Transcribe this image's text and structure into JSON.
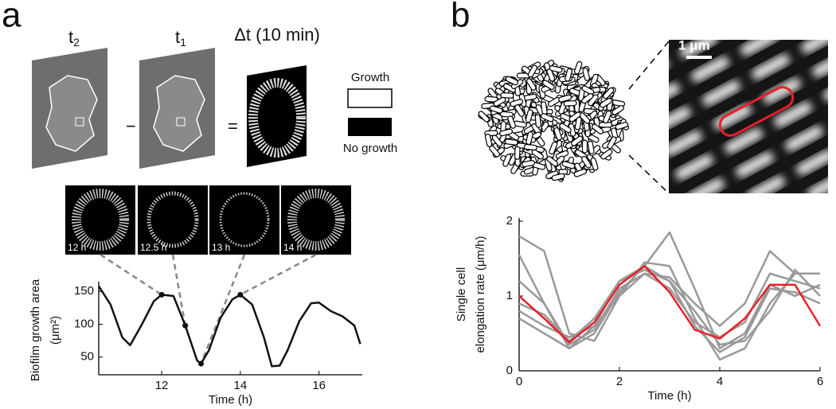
{
  "panels": {
    "a": "a",
    "b": "b"
  },
  "panel_a": {
    "t2": {
      "base": "t",
      "sub": "2"
    },
    "minus": "−",
    "t1": {
      "base": "t",
      "sub": "1"
    },
    "equals": "=",
    "delta": "Δt (10 min)",
    "legend": {
      "growth": "Growth",
      "no_growth": "No growth"
    },
    "insets": [
      "12 h",
      "12.5 h",
      "13 h",
      "14 h"
    ]
  },
  "panel_b": {
    "scale_bar": "1 μm"
  },
  "chart_data": [
    {
      "type": "line",
      "x": [
        10.4,
        10.7,
        11.0,
        11.2,
        11.5,
        11.8,
        12.0,
        12.3,
        12.6,
        12.9,
        13.0,
        13.2,
        13.5,
        13.8,
        14.0,
        14.3,
        14.6,
        14.8,
        15.0,
        15.2,
        15.5,
        15.8,
        16.0,
        16.3,
        16.6,
        16.9,
        17.05
      ],
      "series": [
        {
          "color": "#111111",
          "values": [
            158,
            130,
            80,
            68,
            100,
            135,
            145,
            143,
            98,
            45,
            40,
            60,
            110,
            138,
            145,
            130,
            80,
            36,
            37,
            60,
            105,
            132,
            133,
            120,
            112,
            98,
            70
          ]
        }
      ],
      "points": {
        "x": [
          12,
          12.6,
          13,
          14
        ],
        "values": [
          145,
          98,
          40,
          145
        ]
      },
      "xlabel": "Time (h)",
      "ylabel": [
        "Biofilm growth area",
        "(μm²)"
      ],
      "xlim": [
        10.4,
        17.1
      ],
      "ylim": [
        23,
        160
      ],
      "xticks": [
        12,
        14,
        16
      ],
      "yticks": [
        50,
        100,
        150
      ]
    },
    {
      "type": "line",
      "x": [
        0,
        0.5,
        1,
        1.5,
        2,
        2.5,
        3,
        3.5,
        4,
        4.5,
        5,
        5.5,
        6
      ],
      "series": [
        {
          "color": "#999999",
          "values": [
            1.8,
            1.6,
            0.5,
            0.4,
            1.0,
            1.45,
            1.4,
            0.7,
            0.15,
            0.3,
            0.9,
            1.3,
            1.3
          ]
        },
        {
          "color": "#999999",
          "values": [
            1.55,
            0.9,
            0.3,
            0.6,
            1.2,
            1.4,
            1.85,
            1.1,
            0.3,
            0.5,
            1.15,
            1.0,
            1.15
          ]
        },
        {
          "color": "#999999",
          "values": [
            0.9,
            0.75,
            0.4,
            0.7,
            1.2,
            1.35,
            1.2,
            0.8,
            0.35,
            0.4,
            0.8,
            1.35,
            1.0
          ]
        },
        {
          "color": "#999999",
          "values": [
            0.7,
            0.5,
            0.3,
            0.5,
            1.05,
            1.4,
            1.2,
            0.6,
            0.25,
            0.45,
            1.1,
            1.05,
            0.9
          ]
        },
        {
          "color": "#999999",
          "values": [
            1.2,
            0.9,
            0.35,
            0.55,
            1.1,
            1.3,
            1.25,
            0.9,
            0.6,
            0.9,
            1.6,
            1.3,
            1.3
          ]
        },
        {
          "color": "#999999",
          "values": [
            0.8,
            0.6,
            0.45,
            0.6,
            1.0,
            1.3,
            1.1,
            0.65,
            0.45,
            0.65,
            1.3,
            1.2,
            1.1
          ]
        },
        {
          "color": "#e8202a",
          "values": [
            1.0,
            0.7,
            0.38,
            0.65,
            1.15,
            1.4,
            1.05,
            0.55,
            0.43,
            0.7,
            1.15,
            1.15,
            0.6
          ]
        }
      ],
      "xlabel": "Time (h)",
      "ylabel": [
        "Single cell",
        "elongation rate (μm/h)"
      ],
      "xlim": [
        0,
        6
      ],
      "ylim": [
        0,
        2
      ],
      "xticks": [
        0,
        2,
        4,
        6
      ],
      "yticks": [
        0,
        1,
        2
      ]
    }
  ]
}
